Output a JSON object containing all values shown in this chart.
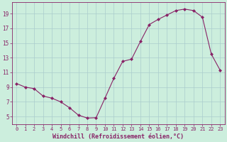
{
  "x": [
    0,
    1,
    2,
    3,
    4,
    5,
    6,
    7,
    8,
    9,
    10,
    11,
    12,
    13,
    14,
    15,
    16,
    17,
    18,
    19,
    20,
    21,
    22,
    23
  ],
  "y": [
    9.5,
    9.0,
    8.8,
    7.8,
    7.5,
    7.0,
    6.2,
    5.2,
    4.8,
    4.85,
    7.5,
    10.2,
    12.5,
    12.8,
    15.2,
    17.5,
    18.2,
    18.8,
    19.4,
    19.6,
    19.4,
    18.5,
    13.5,
    11.3
  ],
  "line_color": "#882266",
  "marker": "D",
  "marker_size": 2.0,
  "bg_color": "#cceedd",
  "grid_color": "#aacccc",
  "xlabel": "Windchill (Refroidissement éolien,°C)",
  "xlabel_fontsize": 6.0,
  "yticks": [
    5,
    7,
    9,
    11,
    13,
    15,
    17,
    19
  ],
  "xticks": [
    0,
    1,
    2,
    3,
    4,
    5,
    6,
    7,
    8,
    9,
    10,
    11,
    12,
    13,
    14,
    15,
    16,
    17,
    18,
    19,
    20,
    21,
    22,
    23
  ],
  "ylim": [
    4.0,
    20.5
  ],
  "xlim": [
    -0.5,
    23.5
  ],
  "tick_color": "#882266",
  "ytick_fontsize": 5.5,
  "xtick_fontsize": 5.0,
  "spine_color": "#882266"
}
